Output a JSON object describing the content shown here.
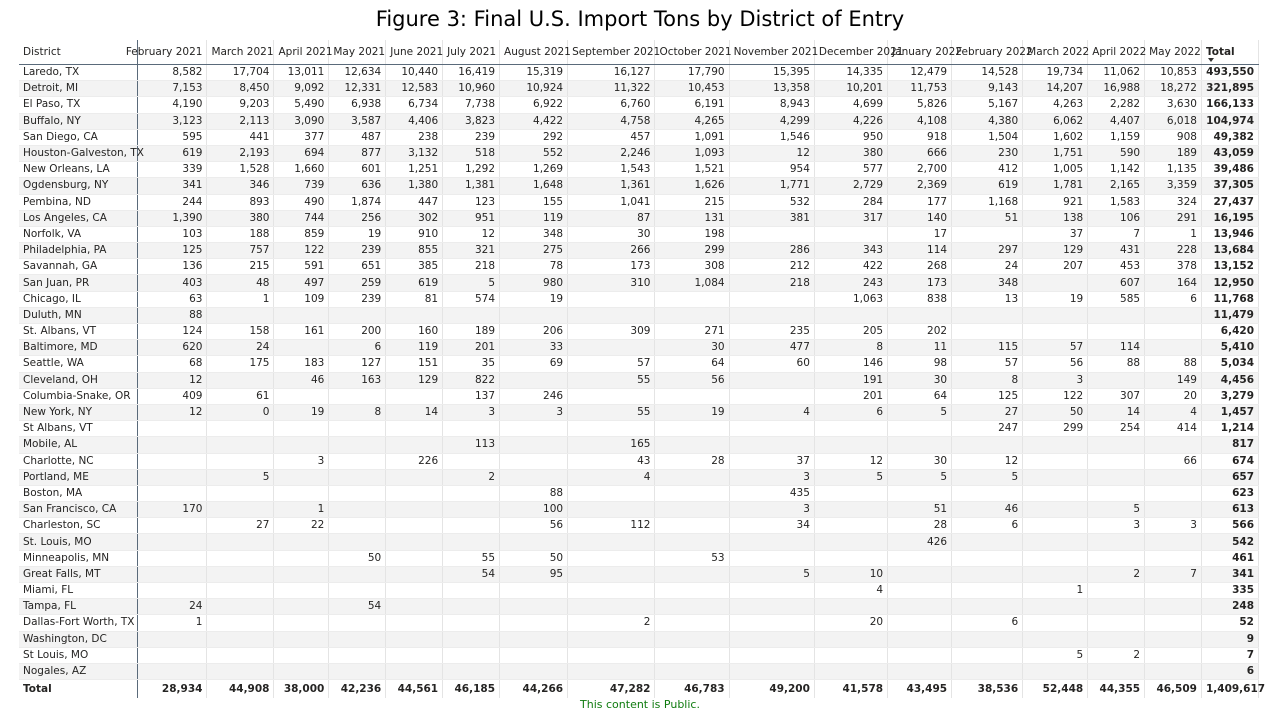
{
  "title": "Figure 3: Final U.S. Import Tons by District of Entry",
  "footer": "This content is Public.",
  "colors": {
    "footer_text": "#0f7b0f",
    "header_rule": "#5a6a7a",
    "stripe": "#f3f3f3"
  },
  "sort_icon": "sort-descending-icon",
  "chart_data": {
    "type": "table",
    "columns": [
      "District",
      "February 2021",
      "March 2021",
      "April 2021",
      "May 2021",
      "June 2021",
      "July 2021",
      "August 2021",
      "September 2021",
      "October 2021",
      "November 2021",
      "December 2021",
      "January 2022",
      "February 2022",
      "March 2022",
      "April 2022",
      "May 2022",
      "Total"
    ],
    "rows": [
      [
        "Laredo, TX",
        "8,582",
        "17,704",
        "13,011",
        "12,634",
        "10,440",
        "16,419",
        "15,319",
        "16,127",
        "17,790",
        "15,395",
        "14,335",
        "12,479",
        "14,528",
        "19,734",
        "11,062",
        "10,853",
        "493,550"
      ],
      [
        "Detroit, MI",
        "7,153",
        "8,450",
        "9,092",
        "12,331",
        "12,583",
        "10,960",
        "10,924",
        "11,322",
        "10,453",
        "13,358",
        "10,201",
        "11,753",
        "9,143",
        "14,207",
        "16,988",
        "18,272",
        "321,895"
      ],
      [
        "El Paso, TX",
        "4,190",
        "9,203",
        "5,490",
        "6,938",
        "6,734",
        "7,738",
        "6,922",
        "6,760",
        "6,191",
        "8,943",
        "4,699",
        "5,826",
        "5,167",
        "4,263",
        "2,282",
        "3,630",
        "166,133"
      ],
      [
        "Buffalo, NY",
        "3,123",
        "2,113",
        "3,090",
        "3,587",
        "4,406",
        "3,823",
        "4,422",
        "4,758",
        "4,265",
        "4,299",
        "4,226",
        "4,108",
        "4,380",
        "6,062",
        "4,407",
        "6,018",
        "104,974"
      ],
      [
        "San Diego, CA",
        "595",
        "441",
        "377",
        "487",
        "238",
        "239",
        "292",
        "457",
        "1,091",
        "1,546",
        "950",
        "918",
        "1,504",
        "1,602",
        "1,159",
        "908",
        "49,382"
      ],
      [
        "Houston-Galveston, TX",
        "619",
        "2,193",
        "694",
        "877",
        "3,132",
        "518",
        "552",
        "2,246",
        "1,093",
        "12",
        "380",
        "666",
        "230",
        "1,751",
        "590",
        "189",
        "43,059"
      ],
      [
        "New Orleans, LA",
        "339",
        "1,528",
        "1,660",
        "601",
        "1,251",
        "1,292",
        "1,269",
        "1,543",
        "1,521",
        "954",
        "577",
        "2,700",
        "412",
        "1,005",
        "1,142",
        "1,135",
        "39,486"
      ],
      [
        "Ogdensburg, NY",
        "341",
        "346",
        "739",
        "636",
        "1,380",
        "1,381",
        "1,648",
        "1,361",
        "1,626",
        "1,771",
        "2,729",
        "2,369",
        "619",
        "1,781",
        "2,165",
        "3,359",
        "37,305"
      ],
      [
        "Pembina, ND",
        "244",
        "893",
        "490",
        "1,874",
        "447",
        "123",
        "155",
        "1,041",
        "215",
        "532",
        "284",
        "177",
        "1,168",
        "921",
        "1,583",
        "324",
        "27,437"
      ],
      [
        "Los Angeles, CA",
        "1,390",
        "380",
        "744",
        "256",
        "302",
        "951",
        "119",
        "87",
        "131",
        "381",
        "317",
        "140",
        "51",
        "138",
        "106",
        "291",
        "16,195"
      ],
      [
        "Norfolk, VA",
        "103",
        "188",
        "859",
        "19",
        "910",
        "12",
        "348",
        "30",
        "198",
        "",
        "",
        "17",
        "",
        "37",
        "7",
        "1",
        "13,946"
      ],
      [
        "Philadelphia, PA",
        "125",
        "757",
        "122",
        "239",
        "855",
        "321",
        "275",
        "266",
        "299",
        "286",
        "343",
        "114",
        "297",
        "129",
        "431",
        "228",
        "13,684"
      ],
      [
        "Savannah, GA",
        "136",
        "215",
        "591",
        "651",
        "385",
        "218",
        "78",
        "173",
        "308",
        "212",
        "422",
        "268",
        "24",
        "207",
        "453",
        "378",
        "13,152"
      ],
      [
        "San Juan, PR",
        "403",
        "48",
        "497",
        "259",
        "619",
        "5",
        "980",
        "310",
        "1,084",
        "218",
        "243",
        "173",
        "348",
        "",
        "607",
        "164",
        "12,950"
      ],
      [
        "Chicago, IL",
        "63",
        "1",
        "109",
        "239",
        "81",
        "574",
        "19",
        "",
        "",
        "",
        "1,063",
        "838",
        "13",
        "19",
        "585",
        "6",
        "11,768"
      ],
      [
        "Duluth, MN",
        "88",
        "",
        "",
        "",
        "",
        "",
        "",
        "",
        "",
        "",
        "",
        "",
        "",
        "",
        "",
        "",
        "11,479"
      ],
      [
        "St. Albans, VT",
        "124",
        "158",
        "161",
        "200",
        "160",
        "189",
        "206",
        "309",
        "271",
        "235",
        "205",
        "202",
        "",
        "",
        "",
        "",
        "6,420"
      ],
      [
        "Baltimore, MD",
        "620",
        "24",
        "",
        "6",
        "119",
        "201",
        "33",
        "",
        "30",
        "477",
        "8",
        "11",
        "115",
        "57",
        "114",
        "",
        "5,410"
      ],
      [
        "Seattle, WA",
        "68",
        "175",
        "183",
        "127",
        "151",
        "35",
        "69",
        "57",
        "64",
        "60",
        "146",
        "98",
        "57",
        "56",
        "88",
        "88",
        "5,034"
      ],
      [
        "Cleveland, OH",
        "12",
        "",
        "46",
        "163",
        "129",
        "822",
        "",
        "55",
        "56",
        "",
        "191",
        "30",
        "8",
        "3",
        "",
        "149",
        "4,456"
      ],
      [
        "Columbia-Snake, OR",
        "409",
        "61",
        "",
        "",
        "",
        "137",
        "246",
        "",
        "",
        "",
        "201",
        "64",
        "125",
        "122",
        "307",
        "20",
        "3,279"
      ],
      [
        "New York, NY",
        "12",
        "0",
        "19",
        "8",
        "14",
        "3",
        "3",
        "55",
        "19",
        "4",
        "6",
        "5",
        "27",
        "50",
        "14",
        "4",
        "1,457"
      ],
      [
        "St Albans, VT",
        "",
        "",
        "",
        "",
        "",
        "",
        "",
        "",
        "",
        "",
        "",
        "",
        "247",
        "299",
        "254",
        "414",
        "1,214"
      ],
      [
        "Mobile, AL",
        "",
        "",
        "",
        "",
        "",
        "113",
        "",
        "165",
        "",
        "",
        "",
        "",
        "",
        "",
        "",
        "",
        "817"
      ],
      [
        "Charlotte, NC",
        "",
        "",
        "3",
        "",
        "226",
        "",
        "",
        "43",
        "28",
        "37",
        "12",
        "30",
        "12",
        "",
        "",
        "66",
        "674"
      ],
      [
        "Portland, ME",
        "",
        "5",
        "",
        "",
        "",
        "2",
        "",
        "4",
        "",
        "3",
        "5",
        "5",
        "5",
        "",
        "",
        "",
        "657"
      ],
      [
        "Boston, MA",
        "",
        "",
        "",
        "",
        "",
        "",
        "88",
        "",
        "",
        "435",
        "",
        "",
        "",
        "",
        "",
        "",
        "623"
      ],
      [
        "San Francisco, CA",
        "170",
        "",
        "1",
        "",
        "",
        "",
        "100",
        "",
        "",
        "3",
        "",
        "51",
        "46",
        "",
        "5",
        "",
        "613"
      ],
      [
        "Charleston, SC",
        "",
        "27",
        "22",
        "",
        "",
        "",
        "56",
        "112",
        "",
        "34",
        "",
        "28",
        "6",
        "",
        "3",
        "3",
        "566"
      ],
      [
        "St. Louis, MO",
        "",
        "",
        "",
        "",
        "",
        "",
        "",
        "",
        "",
        "",
        "",
        "426",
        "",
        "",
        "",
        "",
        "542"
      ],
      [
        "Minneapolis, MN",
        "",
        "",
        "",
        "50",
        "",
        "55",
        "50",
        "",
        "53",
        "",
        "",
        "",
        "",
        "",
        "",
        "",
        "461"
      ],
      [
        "Great Falls, MT",
        "",
        "",
        "",
        "",
        "",
        "54",
        "95",
        "",
        "",
        "5",
        "10",
        "",
        "",
        "",
        "2",
        "7",
        "341"
      ],
      [
        "Miami, FL",
        "",
        "",
        "",
        "",
        "",
        "",
        "",
        "",
        "",
        "",
        "4",
        "",
        "",
        "1",
        "",
        "",
        "335"
      ],
      [
        "Tampa, FL",
        "24",
        "",
        "",
        "54",
        "",
        "",
        "",
        "",
        "",
        "",
        "",
        "",
        "",
        "",
        "",
        "",
        "248"
      ],
      [
        "Dallas-Fort Worth, TX",
        "1",
        "",
        "",
        "",
        "",
        "",
        "",
        "2",
        "",
        "",
        "20",
        "",
        "6",
        "",
        "",
        "",
        "52"
      ],
      [
        "Washington, DC",
        "",
        "",
        "",
        "",
        "",
        "",
        "",
        "",
        "",
        "",
        "",
        "",
        "",
        "",
        "",
        "",
        "9"
      ],
      [
        "St Louis, MO",
        "",
        "",
        "",
        "",
        "",
        "",
        "",
        "",
        "",
        "",
        "",
        "",
        "",
        "5",
        "2",
        "",
        "7"
      ],
      [
        "Nogales, AZ",
        "",
        "",
        "",
        "",
        "",
        "",
        "",
        "",
        "",
        "",
        "",
        "",
        "",
        "",
        "",
        "",
        "6"
      ]
    ],
    "totals": [
      "Total",
      "28,934",
      "44,908",
      "38,000",
      "42,236",
      "44,561",
      "46,185",
      "44,266",
      "47,282",
      "46,783",
      "49,200",
      "41,578",
      "43,495",
      "38,536",
      "52,448",
      "44,355",
      "46,509",
      "1,409,617"
    ]
  }
}
